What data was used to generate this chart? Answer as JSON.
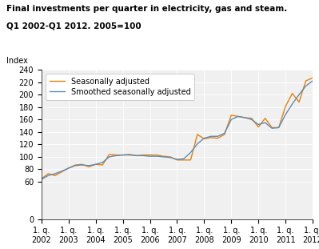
{
  "title_line1": "Final investments per quarter in electricity, gas and steam.",
  "title_line2": "Q1 2002-Q1 2012. 2005=100",
  "index_label": "Index",
  "xlim": [
    0,
    40
  ],
  "ylim": [
    0,
    240
  ],
  "yticks": [
    0,
    60,
    80,
    100,
    120,
    140,
    160,
    180,
    200,
    220,
    240
  ],
  "xtick_labels": [
    "1. q.\n2002",
    "1. q.\n2003",
    "1. q.\n2004",
    "1. q.\n2005",
    "1. q.\n2006",
    "1. q.\n2007",
    "1. q.\n2008",
    "1. q.\n2009",
    "1. q.\n2010",
    "1. q.\n2011",
    "1. q.\n2012"
  ],
  "xtick_positions": [
    0,
    4,
    8,
    12,
    16,
    20,
    24,
    28,
    32,
    36,
    40
  ],
  "seasonally_adjusted_color": "#E8800A",
  "smoothed_color": "#5B8DB8",
  "legend_labels": [
    "Seasonally adjusted",
    "Smoothed seasonally adjusted"
  ],
  "seasonally_adjusted": [
    65,
    73,
    70,
    76,
    82,
    87,
    88,
    84,
    88,
    87,
    104,
    103,
    103,
    104,
    102,
    103,
    103,
    103,
    101,
    100,
    95,
    95,
    95,
    136,
    129,
    131,
    130,
    136,
    167,
    165,
    163,
    162,
    148,
    162,
    147,
    147,
    181,
    202,
    188,
    222,
    227
  ],
  "smoothed_seasonally_adjusted": [
    64,
    70,
    73,
    77,
    82,
    86,
    87,
    86,
    88,
    91,
    100,
    102,
    103,
    103,
    102,
    102,
    101,
    101,
    100,
    99,
    96,
    97,
    107,
    121,
    130,
    133,
    133,
    138,
    160,
    165,
    163,
    160,
    152,
    155,
    146,
    147,
    168,
    185,
    200,
    214,
    222
  ],
  "background_color": "#ffffff",
  "plot_bg_color": "#f0f0f0",
  "grid_color": "#ffffff"
}
